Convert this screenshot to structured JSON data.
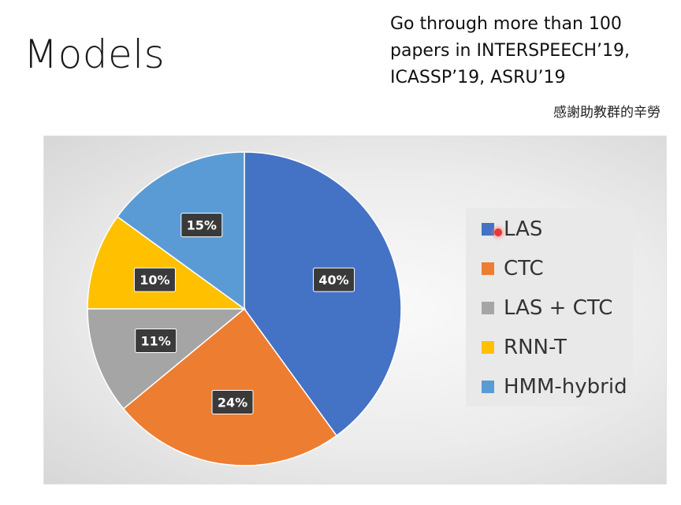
{
  "slide": {
    "title": "Models",
    "note_lines": [
      "Go through more than 100",
      "papers in INTERSPEECH’19,",
      "ICASSP’19, ASRU’19"
    ],
    "credit": "感謝助教群的辛勞"
  },
  "chart_data": {
    "type": "pie",
    "title": "",
    "legend_position": "right",
    "slices": [
      {
        "label": "LAS",
        "value": 40,
        "display": "40%",
        "color": "#4472C4"
      },
      {
        "label": "CTC",
        "value": 24,
        "display": "24%",
        "color": "#ED7D31"
      },
      {
        "label": "LAS + CTC",
        "value": 11,
        "display": "11%",
        "color": "#A5A5A5"
      },
      {
        "label": "RNN-T",
        "value": 10,
        "display": "10%",
        "color": "#FFC000"
      },
      {
        "label": "HMM-hybrid",
        "value": 15,
        "display": "15%",
        "color": "#5B9BD5"
      }
    ]
  }
}
